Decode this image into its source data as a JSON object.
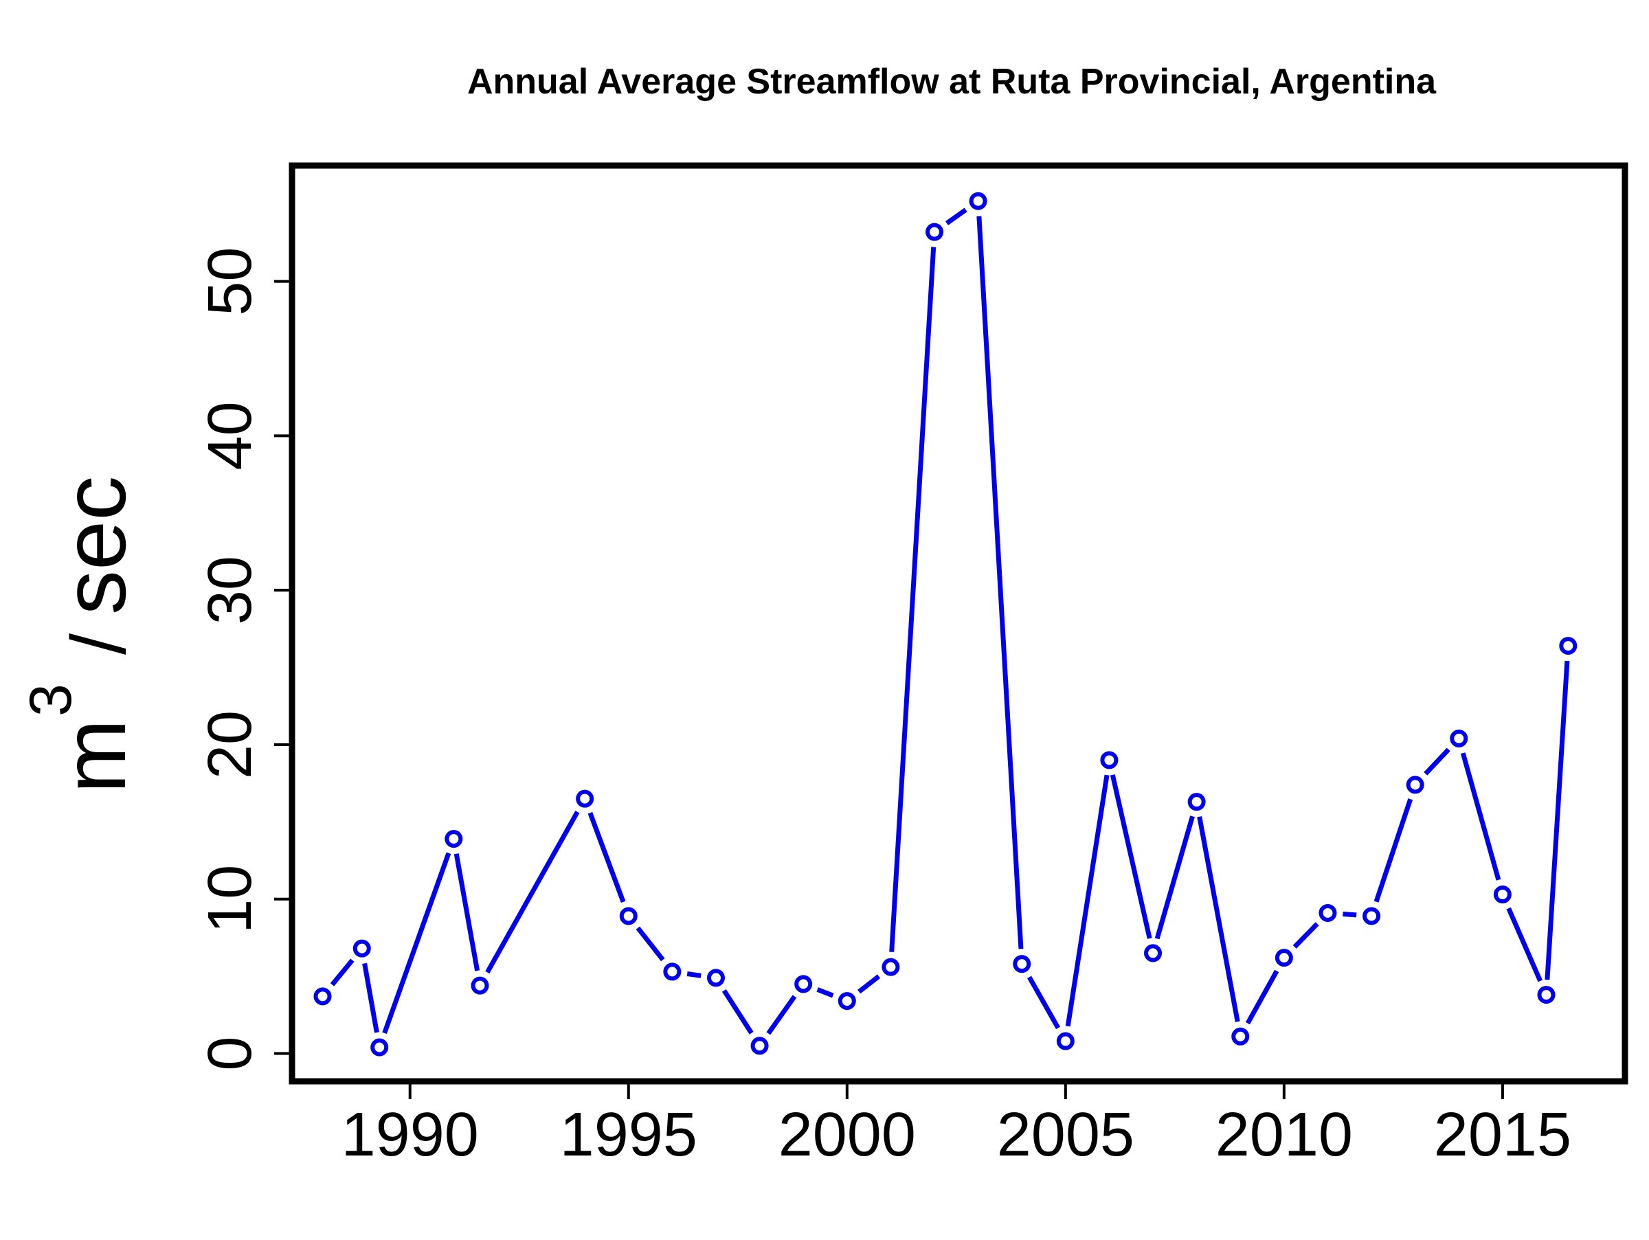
{
  "chart_data": {
    "type": "line",
    "title": "Annual Average Streamflow at Ruta Provincial, Argentina",
    "xlabel": "",
    "ylabel": {
      "base": "m",
      "superscript": "3",
      "separator": "/",
      "unit": "sec"
    },
    "xlim": [
      1987.3,
      2017.8
    ],
    "ylim": [
      -1.8,
      57.5
    ],
    "xticks": [
      1990,
      1995,
      2000,
      2005,
      2010,
      2015
    ],
    "yticks": [
      0,
      10,
      20,
      30,
      40,
      50
    ],
    "grid": false,
    "line_color": "#0000ee",
    "series": [
      {
        "x": [
          1988.0,
          1988.9,
          1989.3,
          1991.0,
          1991.6,
          1994.0,
          1995.0,
          1996.0,
          1997.0,
          1998.0,
          1999.0,
          2000.0,
          2001.0,
          2002.0,
          2003.0,
          2004.0,
          2005.0,
          2006.0,
          2007.0,
          2008.0,
          2009.0,
          2010.0,
          2011.0,
          2012.0,
          2013.0,
          2014.0,
          2015.0,
          2016.0,
          2016.5
        ],
        "y": [
          3.7,
          6.8,
          0.4,
          13.9,
          4.4,
          16.5,
          8.9,
          5.3,
          4.9,
          0.5,
          4.5,
          3.4,
          5.6,
          53.2,
          55.2,
          5.8,
          0.8,
          19.0,
          6.5,
          16.3,
          1.1,
          6.2,
          9.1,
          8.9,
          17.4,
          20.4,
          10.3,
          3.8,
          26.4
        ]
      }
    ]
  }
}
